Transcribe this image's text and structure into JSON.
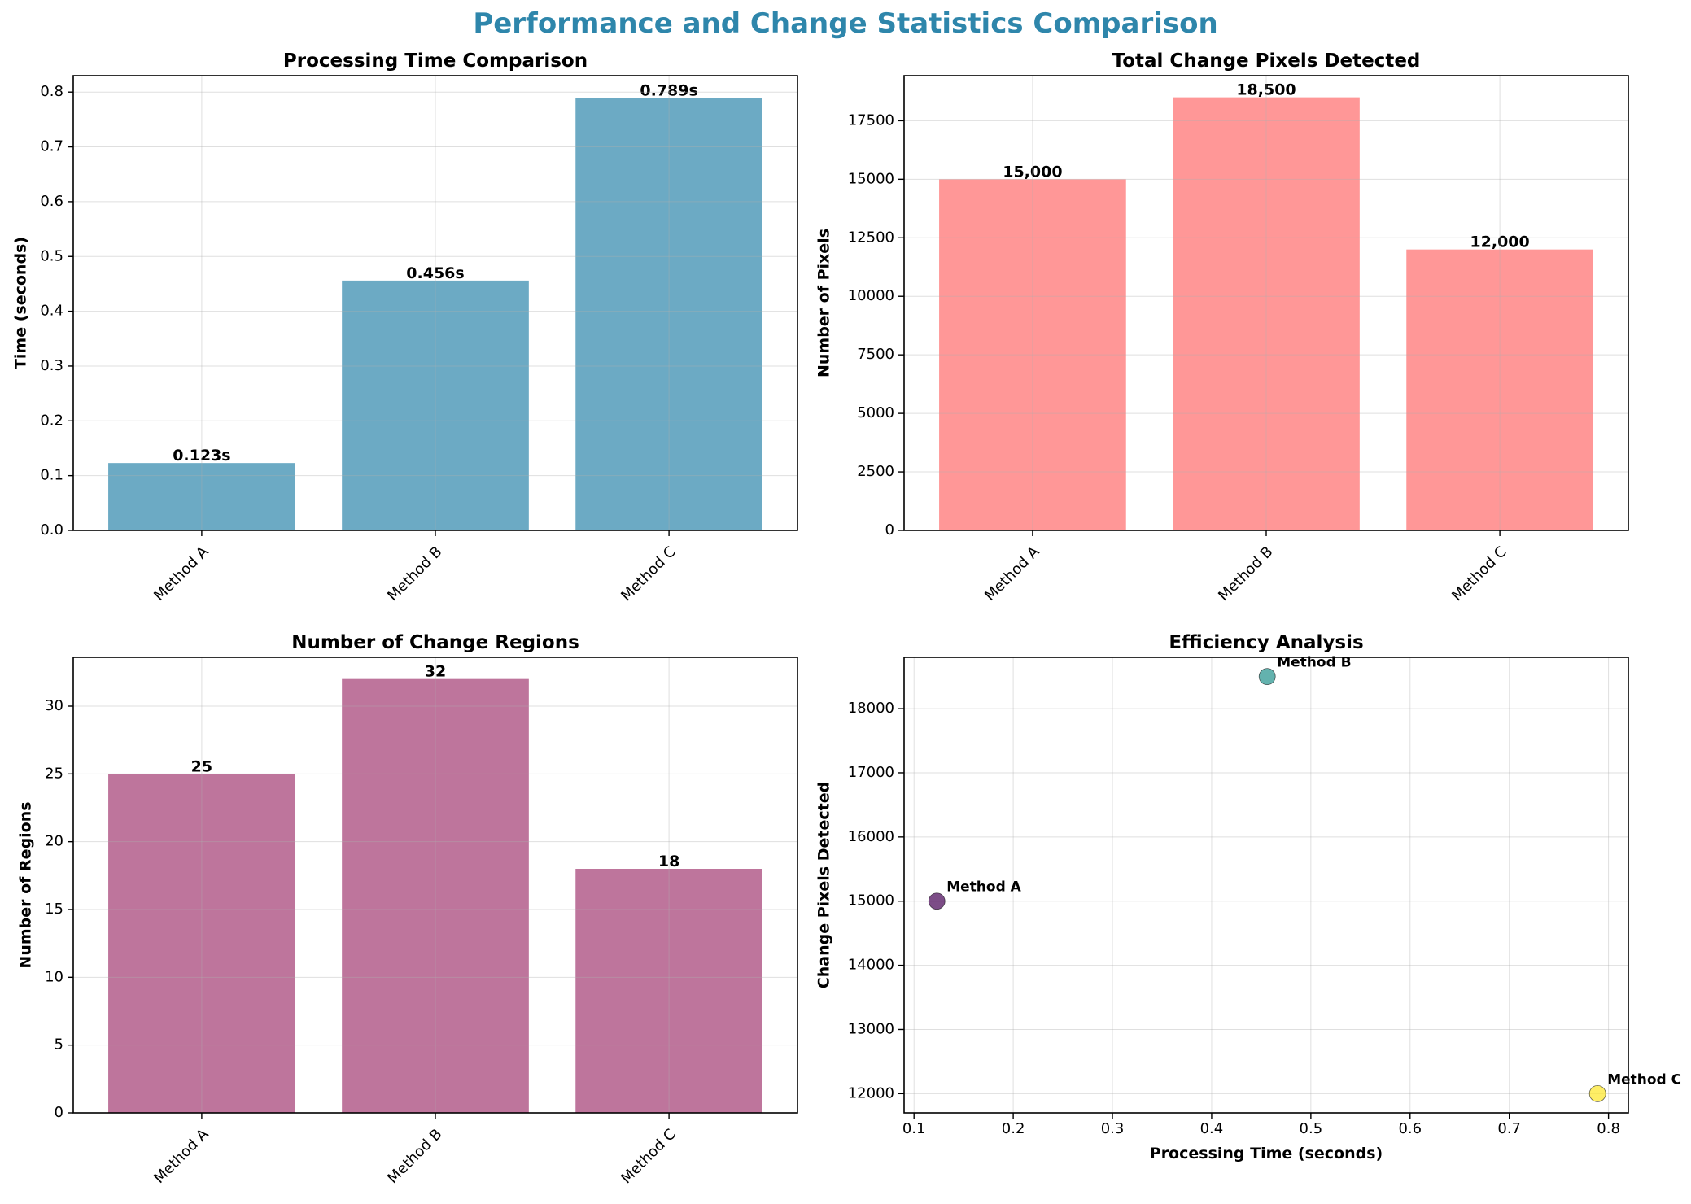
{
  "figure": {
    "suptitle": "Performance and Change Statistics Comparison",
    "suptitle_color": "#2E86AB"
  },
  "chart_data": [
    {
      "type": "bar",
      "title": "Processing Time Comparison",
      "xlabel": "",
      "ylabel": "Time (seconds)",
      "categories": [
        "Method A",
        "Method B",
        "Method C"
      ],
      "values": [
        0.123,
        0.456,
        0.789
      ],
      "value_labels": [
        "0.123s",
        "0.456s",
        "0.789s"
      ],
      "ylim": [
        0,
        0.83
      ],
      "yticks": [
        0.0,
        0.1,
        0.2,
        0.3,
        0.4,
        0.5,
        0.6,
        0.7,
        0.8
      ],
      "ytick_labels": [
        "0.0",
        "0.1",
        "0.2",
        "0.3",
        "0.4",
        "0.5",
        "0.6",
        "0.7",
        "0.8"
      ],
      "color": "#2E86AB",
      "grid": true
    },
    {
      "type": "bar",
      "title": "Total Change Pixels Detected",
      "xlabel": "",
      "ylabel": "Number of Pixels",
      "categories": [
        "Method A",
        "Method B",
        "Method C"
      ],
      "values": [
        15000,
        18500,
        12000
      ],
      "value_labels": [
        "15,000",
        "18,500",
        "12,000"
      ],
      "ylim": [
        0,
        19425
      ],
      "yticks": [
        0,
        2500,
        5000,
        7500,
        10000,
        12500,
        15000,
        17500
      ],
      "ytick_labels": [
        "0",
        "2500",
        "5000",
        "7500",
        "10000",
        "12500",
        "15000",
        "17500"
      ],
      "color": "#FF6B6B",
      "grid": true
    },
    {
      "type": "bar",
      "title": "Number of Change Regions",
      "xlabel": "",
      "ylabel": "Number of Regions",
      "categories": [
        "Method A",
        "Method B",
        "Method C"
      ],
      "values": [
        25,
        32,
        18
      ],
      "value_labels": [
        "25",
        "32",
        "18"
      ],
      "ylim": [
        0,
        33.6
      ],
      "yticks": [
        0,
        5,
        10,
        15,
        20,
        25,
        30
      ],
      "ytick_labels": [
        "0",
        "5",
        "10",
        "15",
        "20",
        "25",
        "30"
      ],
      "color": "#A23B72",
      "grid": true
    },
    {
      "type": "scatter",
      "title": "Efficiency Analysis",
      "xlabel": "Processing Time (seconds)",
      "ylabel": "Change Pixels Detected",
      "points": [
        {
          "name": "Method A",
          "x": 0.123,
          "y": 15000,
          "color": "#440154"
        },
        {
          "name": "Method B",
          "x": 0.456,
          "y": 18500,
          "color": "#21918C"
        },
        {
          "name": "Method C",
          "x": 0.789,
          "y": 12000,
          "color": "#FDE725"
        }
      ],
      "xlim": [
        0.09,
        0.82
      ],
      "ylim": [
        11700,
        18800
      ],
      "xticks": [
        0.1,
        0.2,
        0.3,
        0.4,
        0.5,
        0.6,
        0.7,
        0.8
      ],
      "xtick_labels": [
        "0.1",
        "0.2",
        "0.3",
        "0.4",
        "0.5",
        "0.6",
        "0.7",
        "0.8"
      ],
      "yticks": [
        12000,
        13000,
        14000,
        15000,
        16000,
        17000,
        18000
      ],
      "ytick_labels": [
        "12000",
        "13000",
        "14000",
        "15000",
        "16000",
        "17000",
        "18000"
      ],
      "grid": true
    }
  ]
}
